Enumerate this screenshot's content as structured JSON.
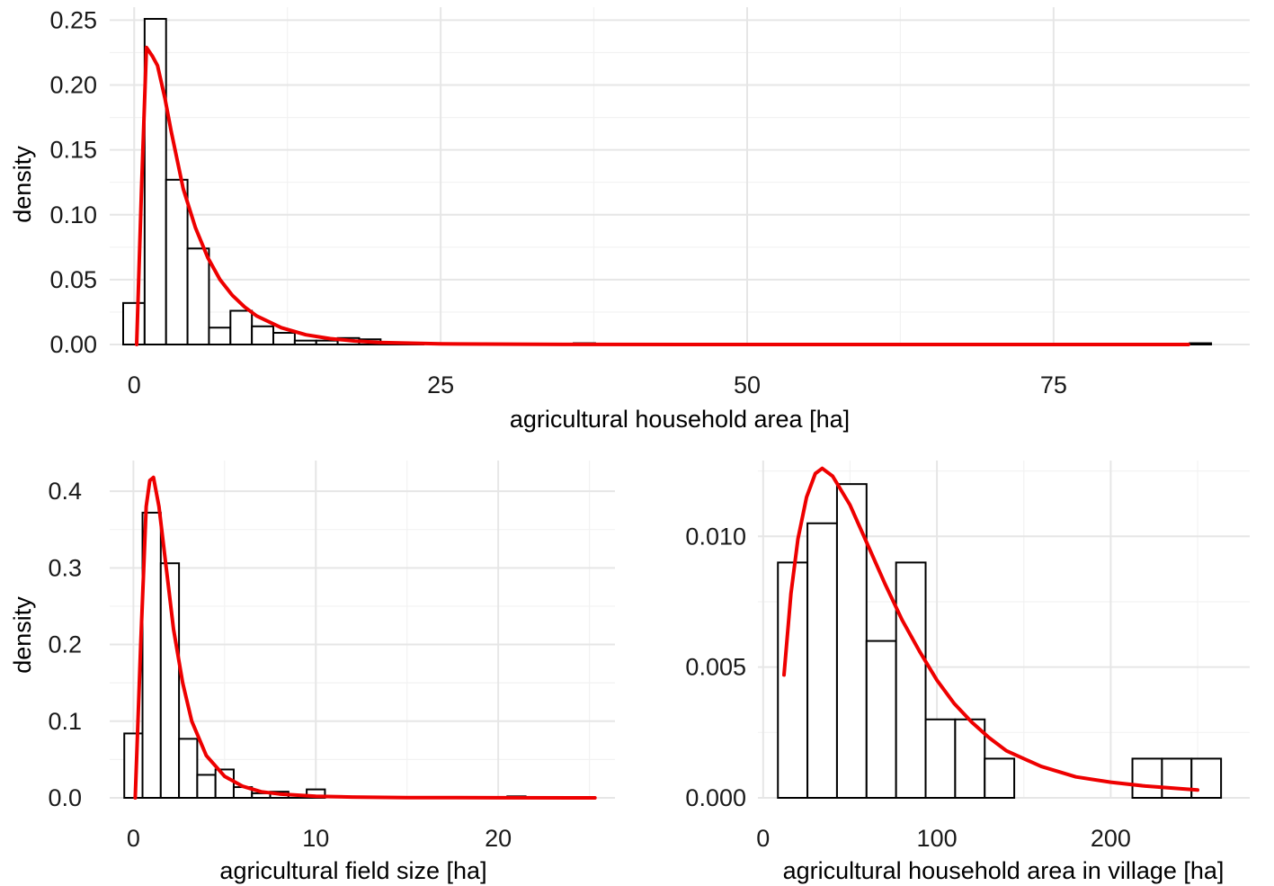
{
  "colors": {
    "background": "#ffffff",
    "grid_major": "#e6e6e6",
    "grid_minor": "#f2f2f2",
    "bar_fill": "#ffffff",
    "bar_stroke": "#000000",
    "density_curve": "#ee0000"
  },
  "chart_data": [
    {
      "id": "household",
      "type": "bar",
      "subtype": "histogram-with-density-curve",
      "xlabel": "agricultural household area [ha]",
      "ylabel": "density",
      "xlim": [
        -2,
        91
      ],
      "ylim": [
        0,
        0.26
      ],
      "grid": true,
      "x_ticks": [
        {
          "value": 0,
          "label": "0"
        },
        {
          "value": 25,
          "label": "25"
        },
        {
          "value": 50,
          "label": "50"
        },
        {
          "value": 75,
          "label": "75"
        }
      ],
      "x_minor_ticks": [
        12.5,
        37.5,
        62.5
      ],
      "y_ticks": [
        {
          "value": 0.0,
          "label": "0.00"
        },
        {
          "value": 0.05,
          "label": "0.05"
        },
        {
          "value": 0.1,
          "label": "0.10"
        },
        {
          "value": 0.15,
          "label": "0.15"
        },
        {
          "value": 0.2,
          "label": "0.20"
        },
        {
          "value": 0.25,
          "label": "0.25"
        }
      ],
      "y_minor_ticks": [
        0.025,
        0.075,
        0.125,
        0.175,
        0.225
      ],
      "bins": [
        {
          "x0": -0.9,
          "x1": 0.85,
          "value": 0.032
        },
        {
          "x0": 0.85,
          "x1": 2.6,
          "value": 0.251
        },
        {
          "x0": 2.6,
          "x1": 4.35,
          "value": 0.127
        },
        {
          "x0": 4.35,
          "x1": 6.1,
          "value": 0.074
        },
        {
          "x0": 6.1,
          "x1": 7.85,
          "value": 0.013
        },
        {
          "x0": 7.85,
          "x1": 9.6,
          "value": 0.026
        },
        {
          "x0": 9.6,
          "x1": 11.35,
          "value": 0.014
        },
        {
          "x0": 11.35,
          "x1": 13.1,
          "value": 0.009
        },
        {
          "x0": 13.1,
          "x1": 14.85,
          "value": 0.003
        },
        {
          "x0": 14.85,
          "x1": 16.6,
          "value": 0.003
        },
        {
          "x0": 16.6,
          "x1": 18.35,
          "value": 0.005
        },
        {
          "x0": 18.35,
          "x1": 20.1,
          "value": 0.004
        },
        {
          "x0": 20.1,
          "x1": 21.85,
          "value": 0.001
        },
        {
          "x0": 21.85,
          "x1": 23.6,
          "value": 0.001
        },
        {
          "x0": 35.85,
          "x1": 37.6,
          "value": 0.001
        },
        {
          "x0": 86.1,
          "x1": 87.85,
          "value": 0.001
        }
      ],
      "curve": [
        [
          0.2,
          0.0
        ],
        [
          0.6,
          0.12
        ],
        [
          1.0,
          0.229
        ],
        [
          1.5,
          0.222
        ],
        [
          1.9,
          0.215
        ],
        [
          2.5,
          0.19
        ],
        [
          3.0,
          0.165
        ],
        [
          4.0,
          0.12
        ],
        [
          5.0,
          0.09
        ],
        [
          6.0,
          0.067
        ],
        [
          7.0,
          0.05
        ],
        [
          8.0,
          0.038
        ],
        [
          9.0,
          0.029
        ],
        [
          10.0,
          0.022
        ],
        [
          12.0,
          0.013
        ],
        [
          14.0,
          0.0075
        ],
        [
          16.0,
          0.0045
        ],
        [
          18.0,
          0.0027
        ],
        [
          20.0,
          0.0016
        ],
        [
          25.0,
          0.0005
        ],
        [
          35.0,
          0.0001
        ],
        [
          50.0,
          0.0
        ],
        [
          70.0,
          0.0
        ],
        [
          86.0,
          0.0
        ]
      ]
    },
    {
      "id": "field",
      "type": "bar",
      "subtype": "histogram-with-density-curve",
      "xlabel": "agricultural field size [ha]",
      "ylabel": "density",
      "xlim": [
        -1.3,
        26.4
      ],
      "ylim": [
        0,
        0.44
      ],
      "grid": true,
      "x_ticks": [
        {
          "value": 0,
          "label": "0"
        },
        {
          "value": 10,
          "label": "10"
        },
        {
          "value": 20,
          "label": "20"
        }
      ],
      "x_minor_ticks": [
        5,
        15,
        25
      ],
      "y_ticks": [
        {
          "value": 0.0,
          "label": "0.0"
        },
        {
          "value": 0.1,
          "label": "0.1"
        },
        {
          "value": 0.2,
          "label": "0.2"
        },
        {
          "value": 0.3,
          "label": "0.3"
        },
        {
          "value": 0.4,
          "label": "0.4"
        }
      ],
      "y_minor_ticks": [
        0.05,
        0.15,
        0.25,
        0.35
      ],
      "bins": [
        {
          "x0": -0.5,
          "x1": 0.5,
          "value": 0.084
        },
        {
          "x0": 0.5,
          "x1": 1.5,
          "value": 0.372
        },
        {
          "x0": 1.5,
          "x1": 2.5,
          "value": 0.306
        },
        {
          "x0": 2.5,
          "x1": 3.5,
          "value": 0.077
        },
        {
          "x0": 3.5,
          "x1": 4.5,
          "value": 0.03
        },
        {
          "x0": 4.5,
          "x1": 5.5,
          "value": 0.037
        },
        {
          "x0": 5.5,
          "x1": 6.5,
          "value": 0.014
        },
        {
          "x0": 6.5,
          "x1": 7.5,
          "value": 0.006
        },
        {
          "x0": 7.5,
          "x1": 8.5,
          "value": 0.008
        },
        {
          "x0": 8.5,
          "x1": 9.5,
          "value": 0.004
        },
        {
          "x0": 9.5,
          "x1": 10.5,
          "value": 0.011
        },
        {
          "x0": 20.5,
          "x1": 21.5,
          "value": 0.002
        }
      ],
      "curve": [
        [
          0.1,
          0.0
        ],
        [
          0.4,
          0.2
        ],
        [
          0.7,
          0.38
        ],
        [
          0.9,
          0.414
        ],
        [
          1.1,
          0.418
        ],
        [
          1.4,
          0.38
        ],
        [
          1.8,
          0.3
        ],
        [
          2.2,
          0.22
        ],
        [
          2.7,
          0.15
        ],
        [
          3.2,
          0.1
        ],
        [
          4.0,
          0.055
        ],
        [
          5.0,
          0.028
        ],
        [
          6.0,
          0.015
        ],
        [
          7.0,
          0.008
        ],
        [
          8.0,
          0.005
        ],
        [
          10.0,
          0.002
        ],
        [
          12.0,
          0.001
        ],
        [
          15.0,
          0.0004
        ],
        [
          20.0,
          0.0001
        ],
        [
          25.3,
          0.0
        ]
      ]
    },
    {
      "id": "village",
      "type": "bar",
      "subtype": "histogram-with-density-curve",
      "xlabel": "agricultural household area in village [ha]",
      "ylabel": "",
      "xlim": [
        -3,
        280
      ],
      "ylim": [
        0,
        0.0129
      ],
      "grid": true,
      "x_ticks": [
        {
          "value": 0,
          "label": "0"
        },
        {
          "value": 100,
          "label": "100"
        },
        {
          "value": 200,
          "label": "200"
        }
      ],
      "x_minor_ticks": [
        50,
        150,
        250
      ],
      "y_ticks": [
        {
          "value": 0.0,
          "label": "0.000"
        },
        {
          "value": 0.005,
          "label": "0.005"
        },
        {
          "value": 0.01,
          "label": "0.010"
        }
      ],
      "y_minor_ticks": [
        0.0025,
        0.0075,
        0.0125
      ],
      "bins": [
        {
          "x0": 8.5,
          "x1": 25.5,
          "value": 0.009
        },
        {
          "x0": 25.5,
          "x1": 42.5,
          "value": 0.0105
        },
        {
          "x0": 42.5,
          "x1": 59.5,
          "value": 0.012
        },
        {
          "x0": 59.5,
          "x1": 76.5,
          "value": 0.006
        },
        {
          "x0": 76.5,
          "x1": 93.5,
          "value": 0.009
        },
        {
          "x0": 93.5,
          "x1": 110.5,
          "value": 0.003
        },
        {
          "x0": 110.5,
          "x1": 127.5,
          "value": 0.003
        },
        {
          "x0": 127.5,
          "x1": 144.5,
          "value": 0.0015
        },
        {
          "x0": 212.5,
          "x1": 229.5,
          "value": 0.0015
        },
        {
          "x0": 229.5,
          "x1": 246.5,
          "value": 0.0015
        },
        {
          "x0": 246.5,
          "x1": 263.5,
          "value": 0.0015
        }
      ],
      "curve": [
        [
          12,
          0.0047
        ],
        [
          16,
          0.0078
        ],
        [
          20,
          0.0099
        ],
        [
          25,
          0.0115
        ],
        [
          30,
          0.0124
        ],
        [
          34,
          0.0126
        ],
        [
          40,
          0.0123
        ],
        [
          50,
          0.0112
        ],
        [
          60,
          0.0097
        ],
        [
          70,
          0.0082
        ],
        [
          80,
          0.0068
        ],
        [
          90,
          0.0056
        ],
        [
          100,
          0.0045
        ],
        [
          110,
          0.0036
        ],
        [
          120,
          0.0029
        ],
        [
          130,
          0.0023
        ],
        [
          140,
          0.0018
        ],
        [
          160,
          0.0012
        ],
        [
          180,
          0.0008
        ],
        [
          200,
          0.0006
        ],
        [
          220,
          0.00045
        ],
        [
          250,
          0.0003
        ]
      ]
    }
  ]
}
